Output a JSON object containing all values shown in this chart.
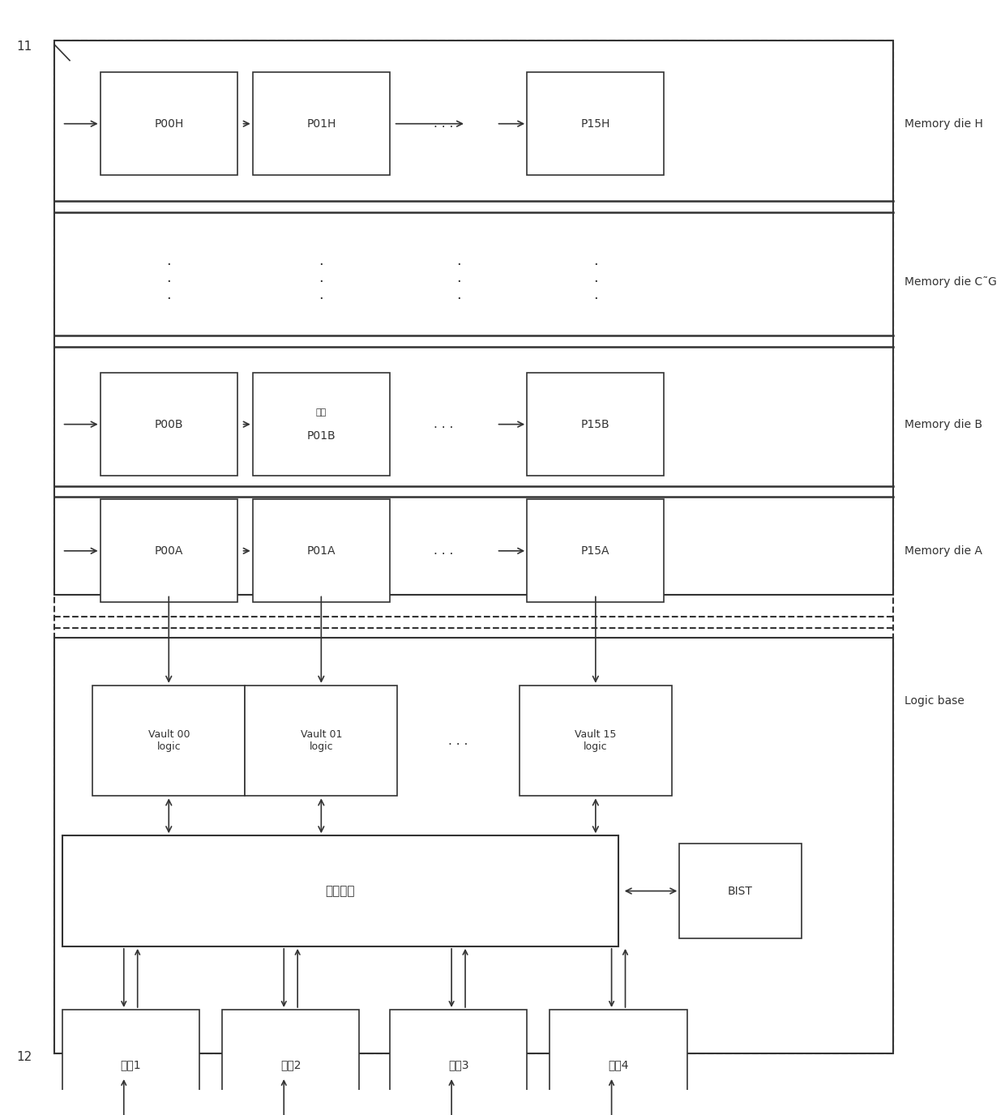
{
  "fig_width": 12.4,
  "fig_height": 13.76,
  "bg_color": "#ffffff",
  "line_color": "#333333",
  "label_11": "11",
  "label_12": "12",
  "memory_die_H_label": "Memory die H",
  "memory_die_CG_label": "Memory die C˜G",
  "memory_die_B_label": "Memory die B",
  "memory_die_A_label": "Memory die A",
  "logic_base_label": "Logic base",
  "bist_label": "BIST",
  "switch_logic_label": "交换逻辑",
  "p00h": "P00H",
  "p01h": "P01H",
  "p15h": "P15H",
  "p00b": "P00B",
  "p01b_top": "文本",
  "p01b_bot": "P01B",
  "p15b": "P15B",
  "p00a": "P00A",
  "p01a": "P01A",
  "p15a": "P15A",
  "vault00": "Vault 00\nlogic",
  "vault01": "Vault 01\nlogic",
  "vault15": "Vault 15\nlogic",
  "link1": "链街1",
  "link2": "链街2",
  "link3": "链街3",
  "link4": "链街4",
  "dots_h": ". . .",
  "dots_v_str": "·\n·\n·"
}
